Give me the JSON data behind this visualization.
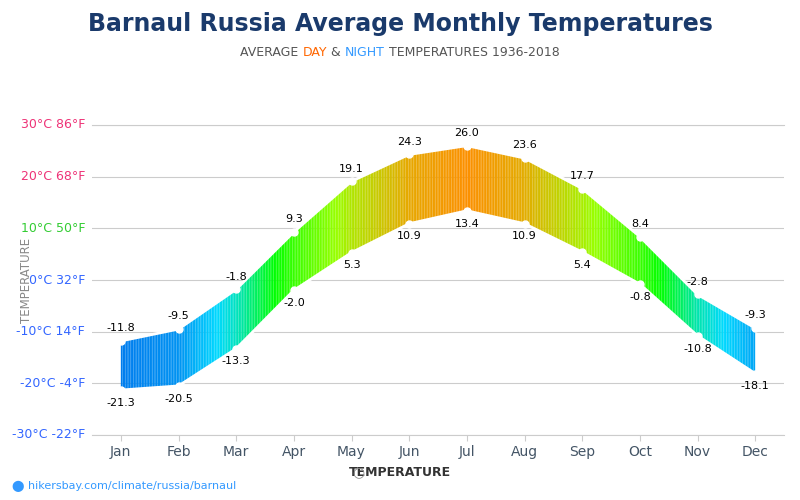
{
  "title": "Barnaul Russia Average Monthly Temperatures",
  "subtitle_parts": [
    "AVERAGE ",
    "DAY",
    " & ",
    "NIGHT",
    " TEMPERATURES 1936-2018"
  ],
  "subtitle_colors": [
    "#555555",
    "#ff6600",
    "#555555",
    "#3399ff",
    "#555555"
  ],
  "months": [
    "Jan",
    "Feb",
    "Mar",
    "Apr",
    "May",
    "Jun",
    "Jul",
    "Aug",
    "Sep",
    "Oct",
    "Nov",
    "Dec"
  ],
  "day_temps": [
    -11.8,
    -9.5,
    -1.8,
    9.3,
    19.1,
    24.3,
    26,
    23.6,
    17.7,
    8.4,
    -2.8,
    -9.3
  ],
  "night_temps": [
    -21.3,
    -20.5,
    -13.3,
    -2,
    5.3,
    10.9,
    13.4,
    10.9,
    5.4,
    -0.8,
    -10.8,
    -18.1
  ],
  "ylim": [
    -30,
    30
  ],
  "yticks": [
    -30,
    -20,
    -10,
    0,
    10,
    20,
    30
  ],
  "ytick_labels": [
    "-30°C -22°F",
    "-20°C -4°F",
    "-10°C 14°F",
    "0°C 32°F",
    "10°C 50°F",
    "20°C 68°F",
    "30°C 86°F"
  ],
  "ytick_colors": [
    "#3366ff",
    "#3366ff",
    "#3366ff",
    "#3366ff",
    "#33cc33",
    "#ee3377",
    "#ee3377"
  ],
  "ylabel": "TEMPERATURE",
  "watermark": "hikersbay.com/climate/russia/barnaul",
  "bg_color": "#ffffff",
  "line_color": "#ffffff",
  "title_color": "#1a3a6b",
  "title_fontsize": 17,
  "subtitle_fontsize": 9,
  "grid_color": "#cccccc"
}
